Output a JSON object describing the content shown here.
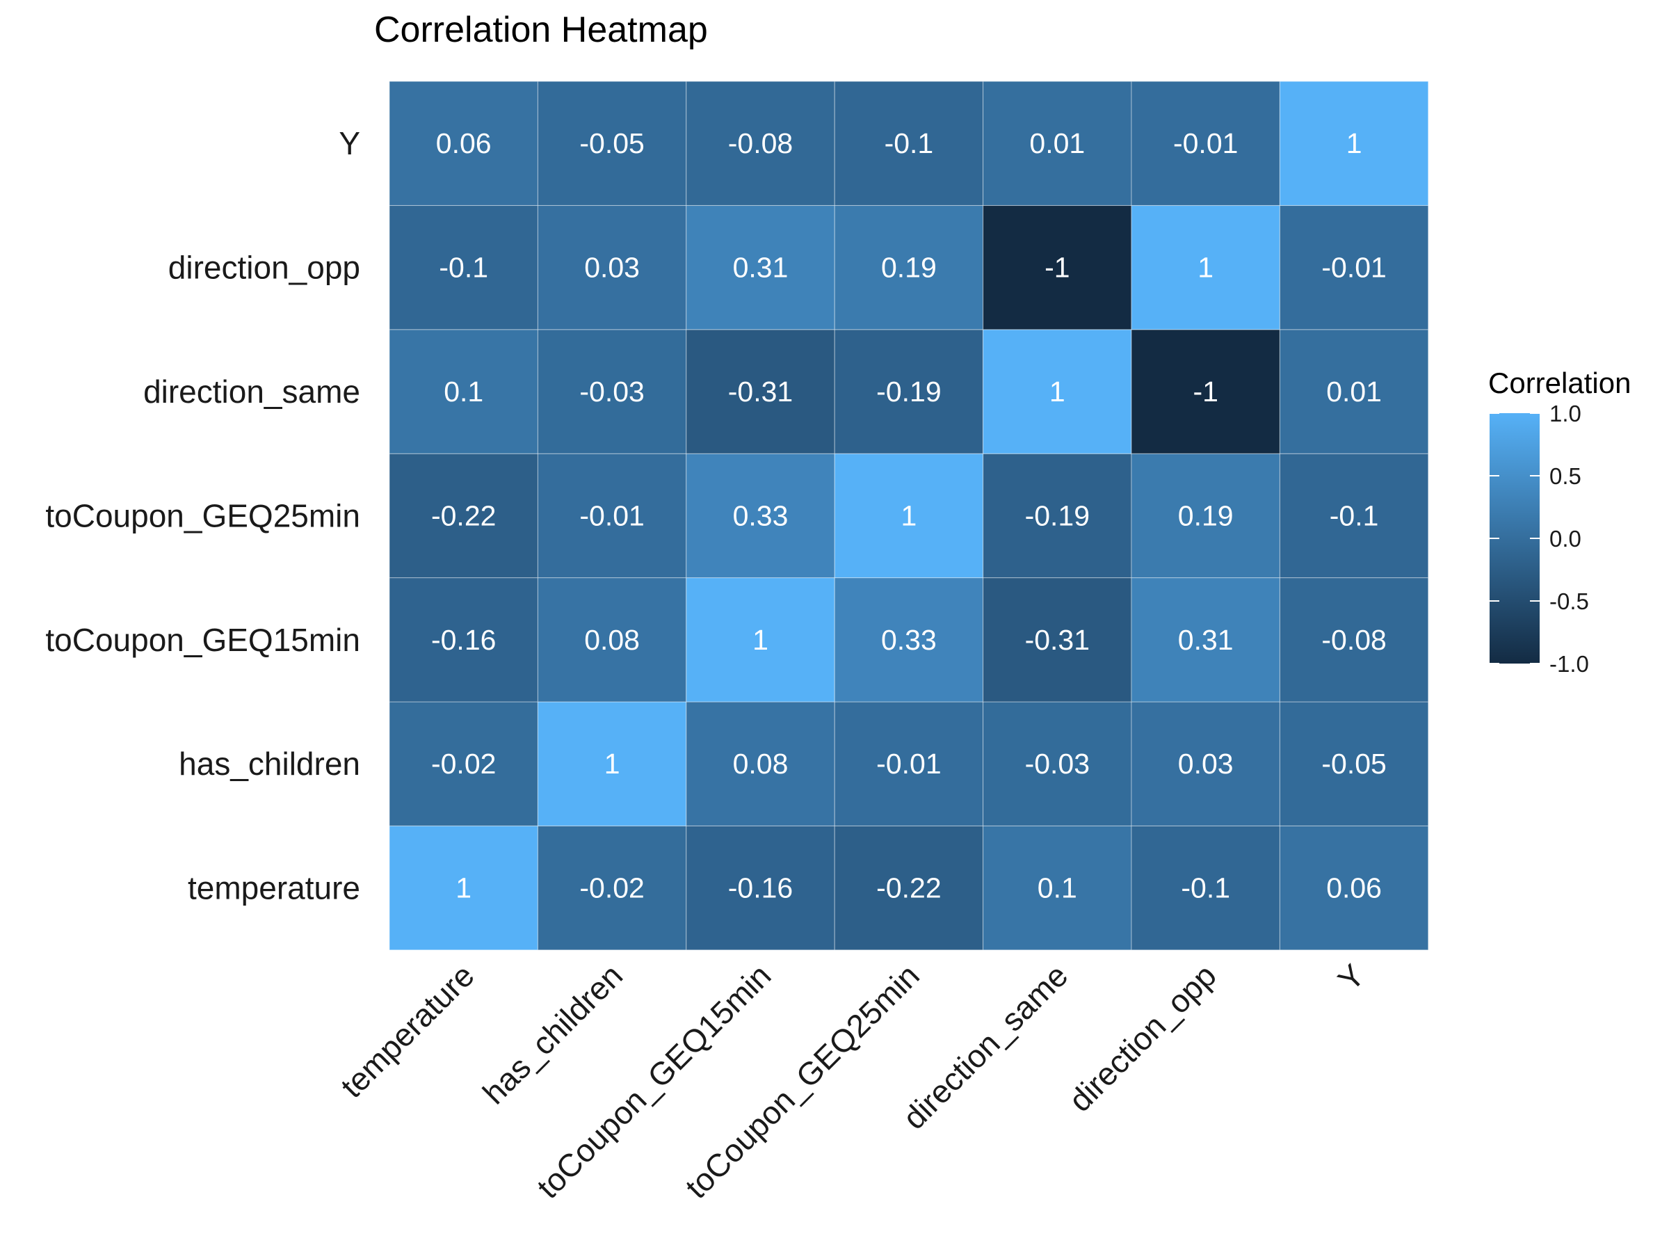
{
  "chart_data": {
    "type": "heatmap",
    "title": "Correlation Heatmap",
    "xlabel": "",
    "ylabel": "",
    "variables": [
      "temperature",
      "has_children",
      "toCoupon_GEQ15min",
      "toCoupon_GEQ25min",
      "direction_same",
      "direction_opp",
      "Y"
    ],
    "matrix": [
      [
        1,
        -0.02,
        -0.16,
        -0.22,
        0.1,
        -0.1,
        0.06
      ],
      [
        -0.02,
        1,
        0.08,
        -0.01,
        -0.03,
        0.03,
        -0.05
      ],
      [
        -0.16,
        0.08,
        1,
        0.33,
        -0.31,
        0.31,
        -0.08
      ],
      [
        -0.22,
        -0.01,
        0.33,
        1,
        -0.19,
        0.19,
        -0.1
      ],
      [
        0.1,
        -0.03,
        -0.31,
        -0.19,
        1,
        -1,
        0.01
      ],
      [
        -0.1,
        0.03,
        0.31,
        0.19,
        -1,
        1,
        -0.01
      ],
      [
        0.06,
        -0.05,
        -0.08,
        -0.1,
        0.01,
        -0.01,
        1
      ]
    ],
    "color_scale": {
      "low": "#132B43",
      "high": "#56B1F7",
      "range": [
        -1,
        1
      ]
    },
    "legend": {
      "title": "Correlation",
      "ticks": [
        1.0,
        0.5,
        0.0,
        -0.5,
        -1.0
      ],
      "tick_labels": [
        "1.0",
        "0.5",
        "0.0",
        "-0.5",
        "-1.0"
      ],
      "placement": "right"
    },
    "grid": false
  }
}
